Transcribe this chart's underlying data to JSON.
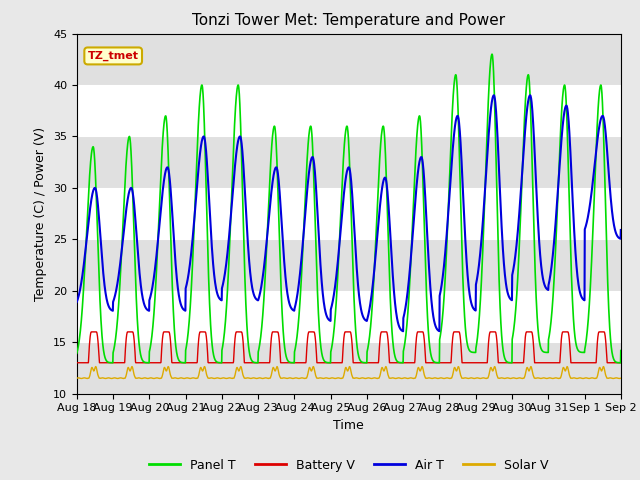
{
  "title": "Tonzi Tower Met: Temperature and Power",
  "xlabel": "Time",
  "ylabel": "Temperature (C) / Power (V)",
  "ylim": [
    10,
    45
  ],
  "yticks": [
    10,
    15,
    20,
    25,
    30,
    35,
    40,
    45
  ],
  "colors": {
    "panel_t": "#00dd00",
    "battery_v": "#dd0000",
    "air_t": "#0000dd",
    "solar_v": "#ddaa00"
  },
  "legend_labels": [
    "Panel T",
    "Battery V",
    "Air T",
    "Solar V"
  ],
  "annotation_text": "TZ_tmet",
  "annotation_bg": "#ffffcc",
  "annotation_border": "#ccaa00",
  "annotation_text_color": "#cc0000",
  "n_days": 15,
  "band_color": "#e0e0e0",
  "plot_bg": "#f8f8f8",
  "fig_bg": "#e8e8e8"
}
